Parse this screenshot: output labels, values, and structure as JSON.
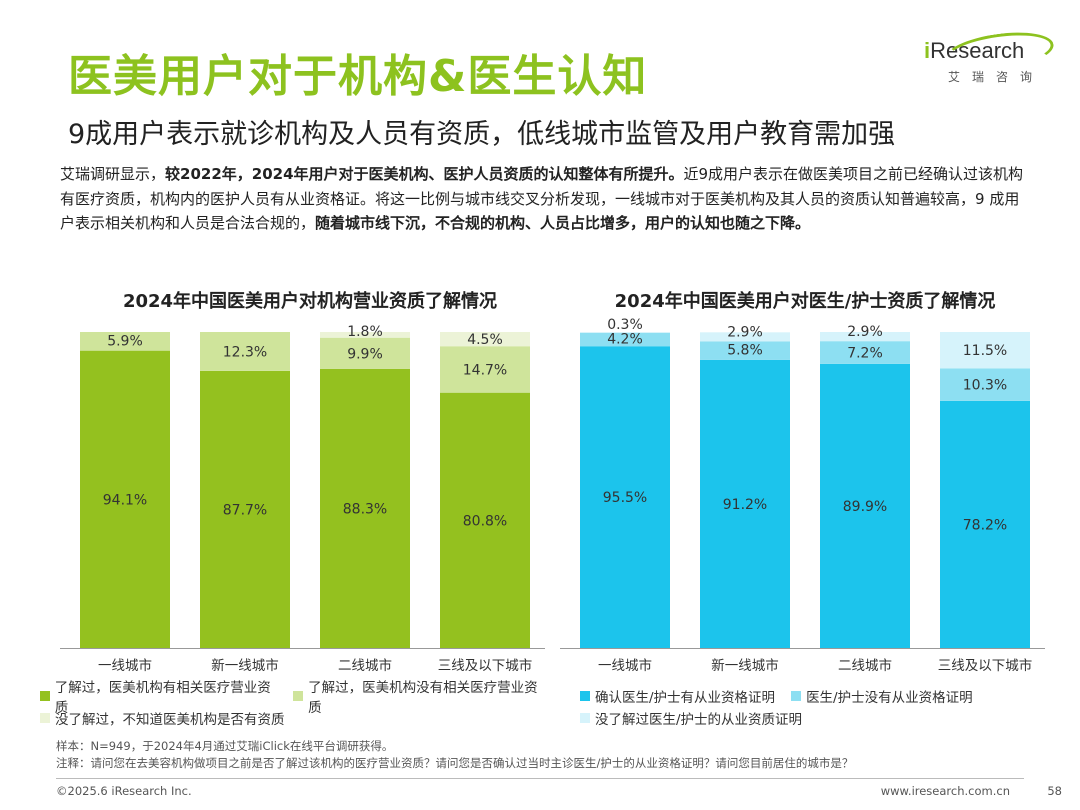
{
  "header": {
    "title": "医美用户对于机构&医生认知",
    "subtitle": "9成用户表示就诊机构及人员有资质，低线城市监管及用户教育需加强",
    "logo_text_i": "i",
    "logo_text_rest": "Research",
    "logo_sub": "艾瑞咨询"
  },
  "description": {
    "p1": "艾瑞调研显示，",
    "p2_bold": "较2022年，2024年用户对于医美机构、医护人员资质的认知整体有所提升。",
    "p3": "近9成用户表示在做医美项目之前已经确认过该机构有医疗资质，机构内的医护人员有从业资格证。将这一比例与城市线交叉分析发现，一线城市对于医美机构及其人员的资质认知普遍较高，9 成用户表示相关机构和人员是合法合规的，",
    "p4_bold": "随着城市线下沉，不合规的机构、人员占比增多，用户的认知也随之下降。"
  },
  "colors": {
    "title_green": "#8dc21f",
    "left_s1": "#94c11f",
    "left_s2": "#cfe49b",
    "left_s3": "#ecf3d7",
    "right_s1": "#1cc4ec",
    "right_s2": "#8ddff2",
    "right_s3": "#d6f3fb"
  },
  "chart_data": [
    {
      "type": "bar",
      "stacked": true,
      "title": "2024年中国医美用户对机构营业资质了解情况",
      "categories": [
        "一线城市",
        "新一线城市",
        "二线城市",
        "三线及以下城市"
      ],
      "series": [
        {
          "name": "了解过，医美机构有相关医疗营业资质",
          "values": [
            94.1,
            87.7,
            88.3,
            80.8
          ],
          "labels": [
            "94.1%",
            "87.7%",
            "88.3%",
            "80.8%"
          ]
        },
        {
          "name": "了解过，医美机构没有相关医疗营业资质",
          "values": [
            5.9,
            12.3,
            9.9,
            14.7
          ],
          "labels": [
            "5.9%",
            "12.3%",
            "9.9%",
            "14.7%"
          ]
        },
        {
          "name": "没了解过，不知道医美机构是否有资质",
          "values": [
            0,
            0,
            1.8,
            4.5
          ],
          "labels": [
            "",
            "",
            "1.8%",
            "4.5%"
          ]
        }
      ],
      "ylim": [
        0,
        100
      ]
    },
    {
      "type": "bar",
      "stacked": true,
      "title": "2024年中国医美用户对医生/护士资质了解情况",
      "categories": [
        "一线城市",
        "新一线城市",
        "二线城市",
        "三线及以下城市"
      ],
      "series": [
        {
          "name": "确认医生/护士有从业资格证明",
          "values": [
            95.5,
            91.2,
            89.9,
            78.2
          ],
          "labels": [
            "95.5%",
            "91.2%",
            "89.9%",
            "78.2%"
          ]
        },
        {
          "name": "医生/护士没有从业资格证明",
          "values": [
            4.2,
            5.8,
            7.2,
            10.3
          ],
          "labels": [
            "4.2%",
            "5.8%",
            "7.2%",
            "10.3%"
          ]
        },
        {
          "name": "没了解过医生/护士的从业资质证明",
          "values": [
            0.3,
            2.9,
            2.9,
            11.5
          ],
          "labels": [
            "0.3%",
            "2.9%",
            "2.9%",
            "11.5%"
          ]
        }
      ],
      "ylim": [
        0,
        100
      ]
    }
  ],
  "notes": {
    "sample": "样本：N=949，于2024年4月通过艾瑞iClick在线平台调研获得。",
    "note": "注释：请问您在去美容机构做项目之前是否了解过该机构的医疗营业资质？请问您是否确认过当时主诊医生/护士的从业资格证明？请问您目前居住的城市是？"
  },
  "footer": {
    "copyright": "©2025.6 iResearch Inc.",
    "url": "www.iresearch.com.cn",
    "page": "58"
  }
}
